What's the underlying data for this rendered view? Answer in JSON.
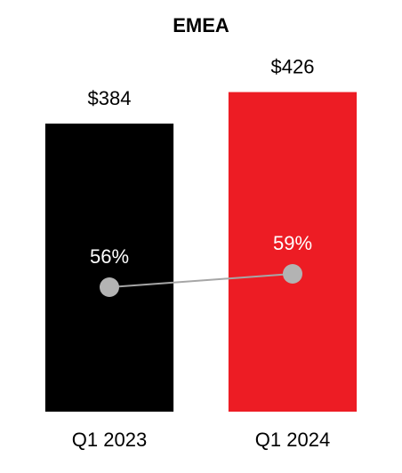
{
  "chart_data": {
    "type": "bar",
    "title": "EMEA",
    "categories": [
      "Q1 2023",
      "Q1 2024"
    ],
    "ylim": [
      0,
      480
    ],
    "y2lim": [
      28,
      109
    ],
    "series": [
      {
        "type": "bar",
        "colors": [
          "#000000",
          "#ed1c24"
        ],
        "values": [
          384,
          426
        ],
        "value_labels": [
          "$384",
          "$426"
        ]
      },
      {
        "type": "line",
        "axis": "y2",
        "color": "#a6a6a6",
        "marker_color": "#b3b3b3",
        "values": [
          56,
          59
        ],
        "value_labels": [
          "56%",
          "59%"
        ]
      }
    ]
  }
}
